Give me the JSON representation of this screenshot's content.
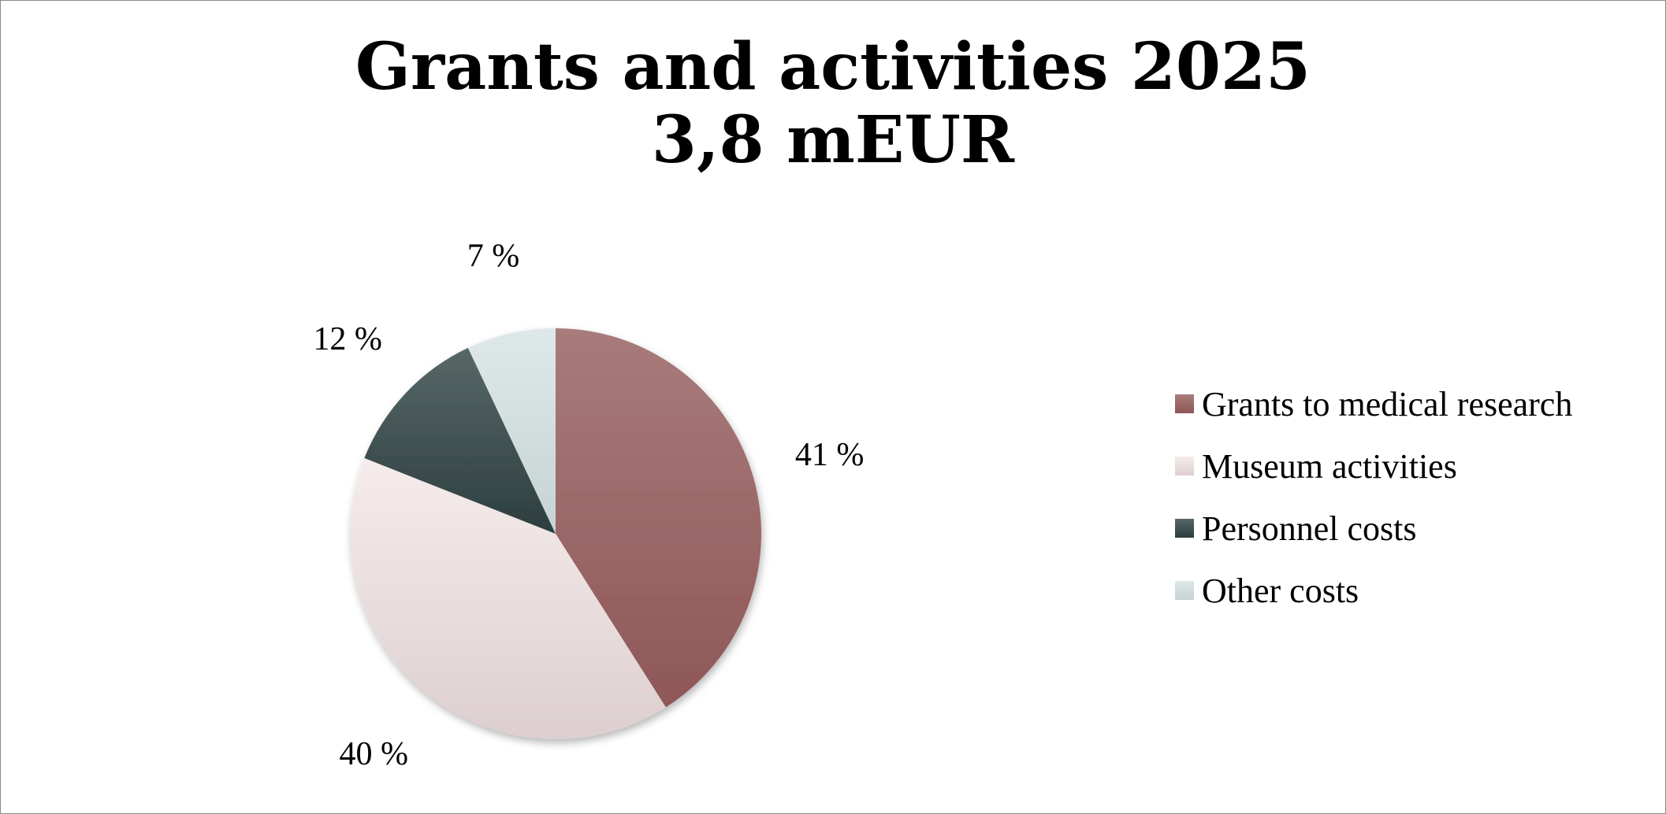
{
  "chart_data": {
    "type": "pie",
    "title_lines": [
      "Grants and activities 2025",
      "3,8 mEUR"
    ],
    "label_suffix": " %",
    "legend_position": "right",
    "slices": [
      {
        "name": "Grants to medical research",
        "value": 41,
        "color_top": "#a87b7b",
        "color_bottom": "#8f5757"
      },
      {
        "name": "Museum activities",
        "value": 40,
        "color_top": "#f6ecec",
        "color_bottom": "#ddcfd0"
      },
      {
        "name": "Personnel costs",
        "value": 12,
        "color_top": "#586767",
        "color_bottom": "#2c3e3e"
      },
      {
        "name": "Other costs",
        "value": 7,
        "color_top": "#dfe8e8",
        "color_bottom": "#c5d3d3"
      }
    ]
  }
}
